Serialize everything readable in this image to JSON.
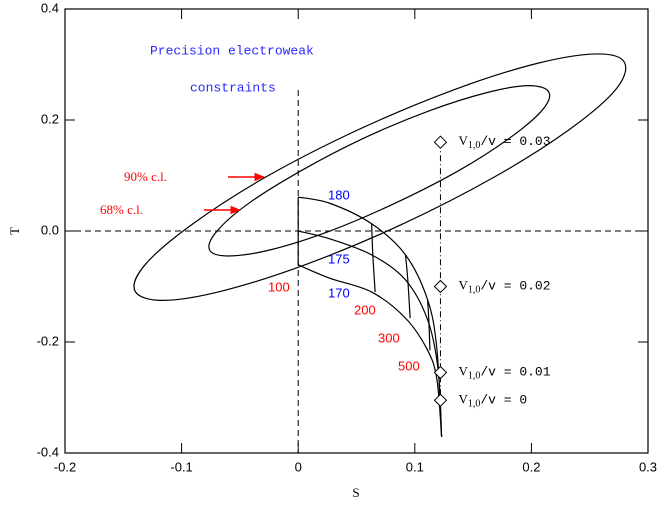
{
  "chart_data": {
    "type": "line",
    "title_lines": [
      "Precision electroweak",
      "constraints"
    ],
    "title_color": "#2a2aff",
    "xlabel": "S",
    "ylabel": "T",
    "xlim": [
      -0.2,
      0.3
    ],
    "ylim": [
      -0.4,
      0.4
    ],
    "xticks": [
      -0.2,
      -0.1,
      0,
      0.1,
      0.2,
      0.3
    ],
    "yticks": [
      -0.4,
      -0.2,
      {
        "value": 0,
        "label": "0.0"
      },
      0.2,
      0.4
    ],
    "hline": 0,
    "vline": 0,
    "series": [
      {
        "name": "90% c.l.",
        "color": "#000000",
        "label_color": "#ff0000",
        "closed": true,
        "x": [
          0.28,
          0.272,
          0.232,
          0.168,
          0.089,
          0.007,
          -0.065,
          -0.116,
          -0.14,
          -0.131,
          -0.091,
          -0.028,
          0.051,
          0.133,
          0.205,
          0.257
        ],
        "y": [
          0.303,
          0.254,
          0.182,
          0.097,
          0.012,
          -0.06,
          -0.108,
          -0.125,
          -0.108,
          -0.06,
          0.012,
          0.097,
          0.182,
          0.254,
          0.302,
          0.319
        ]
      },
      {
        "name": "68% c.l.",
        "color": "#000000",
        "label_color": "#ff0000",
        "closed": true,
        "x": [
          0.215,
          0.209,
          0.181,
          0.137,
          0.082,
          0.026,
          -0.024,
          -0.06,
          -0.076,
          -0.07,
          -0.043,
          0.002,
          0.056,
          0.113,
          0.163,
          0.198
        ],
        "y": [
          0.25,
          0.217,
          0.167,
          0.108,
          0.049,
          -0.001,
          -0.034,
          -0.045,
          -0.034,
          -0.001,
          0.049,
          0.108,
          0.167,
          0.217,
          0.25,
          0.262
        ]
      },
      {
        "name": "180",
        "color": "#000000",
        "label_color": "#0000ff",
        "closed": false,
        "x": [
          0,
          0.027,
          0.063,
          0.092,
          0.111,
          0.119,
          0.123
        ],
        "y": [
          0.061,
          0.05,
          0.013,
          -0.043,
          -0.124,
          -0.214,
          -0.371
        ]
      },
      {
        "name": "175",
        "color": "#000000",
        "label_color": "#0000ff",
        "closed": false,
        "x": [
          0,
          0.027,
          0.063,
          0.092,
          0.111,
          0.12,
          0.123
        ],
        "y": [
          0,
          -0.014,
          -0.043,
          -0.088,
          -0.16,
          -0.25,
          -0.371
        ]
      },
      {
        "name": "170",
        "color": "#000000",
        "label_color": "#0000ff",
        "closed": false,
        "x": [
          0,
          0.027,
          0.063,
          0.092,
          0.111,
          0.119,
          0.123
        ],
        "y": [
          -0.061,
          -0.085,
          -0.11,
          -0.157,
          -0.215,
          -0.268,
          -0.371
        ]
      },
      {
        "name": "100",
        "color": "#000000",
        "label_color": "#ff0000",
        "closed": false,
        "x": [
          0,
          0,
          0
        ],
        "y": [
          0.061,
          0,
          -0.061
        ]
      },
      {
        "name": "200",
        "color": "#000000",
        "label_color": "#ff0000",
        "closed": false,
        "x": [
          0.063,
          0.064,
          0.066
        ],
        "y": [
          0.013,
          -0.043,
          -0.11
        ]
      },
      {
        "name": "300",
        "color": "#000000",
        "label_color": "#ff0000",
        "closed": false,
        "x": [
          0.092,
          0.094,
          0.096
        ],
        "y": [
          -0.043,
          -0.088,
          -0.157
        ]
      },
      {
        "name": "500",
        "color": "#000000",
        "label_color": "#ff0000",
        "closed": false,
        "x": [
          0.111,
          0.112,
          0.113
        ],
        "y": [
          -0.124,
          -0.16,
          -0.215
        ]
      }
    ],
    "points": [
      {
        "x": 0.122,
        "y": 0.16,
        "label_base": "V",
        "label_sub": "1,0",
        "label_rest": "/v = 0.03"
      },
      {
        "x": 0.122,
        "y": -0.1,
        "label_base": "V",
        "label_sub": "1,0",
        "label_rest": "/v = 0.02"
      },
      {
        "x": 0.122,
        "y": -0.255,
        "label_base": "V",
        "label_sub": "1,0",
        "label_rest": "/v = 0.01"
      },
      {
        "x": 0.122,
        "y": -0.305,
        "label_base": "V",
        "label_sub": "1,0",
        "label_rest": "/v = 0"
      }
    ]
  }
}
